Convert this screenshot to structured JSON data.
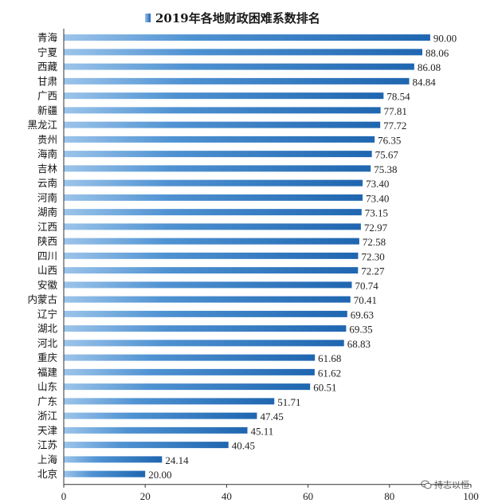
{
  "chart_data": {
    "type": "bar",
    "orientation": "horizontal",
    "title": "2019年各地财政困难系数排名",
    "legend": "top",
    "xlim": [
      0,
      100
    ],
    "xticks": [
      0,
      20,
      40,
      60,
      80,
      100
    ],
    "grid": false,
    "bar_color": "#2f78c0",
    "categories": [
      "青海",
      "宁夏",
      "西藏",
      "甘肃",
      "广西",
      "新疆",
      "黑龙江",
      "贵州",
      "海南",
      "吉林",
      "云南",
      "河南",
      "湖南",
      "江西",
      "陕西",
      "四川",
      "山西",
      "安徽",
      "内蒙古",
      "辽宁",
      "湖北",
      "河北",
      "重庆",
      "福建",
      "山东",
      "广东",
      "浙江",
      "天津",
      "江苏",
      "上海",
      "北京"
    ],
    "values": [
      90.0,
      88.06,
      86.08,
      84.84,
      78.54,
      77.81,
      77.72,
      76.35,
      75.67,
      75.38,
      73.4,
      73.4,
      73.15,
      72.97,
      72.58,
      72.3,
      72.27,
      70.74,
      70.41,
      69.63,
      69.35,
      68.83,
      61.68,
      61.62,
      60.51,
      51.71,
      47.45,
      45.11,
      40.45,
      24.14,
      20.0
    ],
    "value_labels": [
      "90.00",
      "88.06",
      "86.08",
      "84.84",
      "78.54",
      "77.81",
      "77.72",
      "76.35",
      "75.67",
      "75.38",
      "73.40",
      "73.40",
      "73.15",
      "72.97",
      "72.58",
      "72.30",
      "72.27",
      "70.74",
      "70.41",
      "69.63",
      "69.35",
      "68.83",
      "61.68",
      "61.62",
      "60.51",
      "51.71",
      "47.45",
      "45.11",
      "40.45",
      "24.14",
      "20.00"
    ]
  },
  "watermark": {
    "text": "持志以恒",
    "icon": "wechat-icon"
  }
}
